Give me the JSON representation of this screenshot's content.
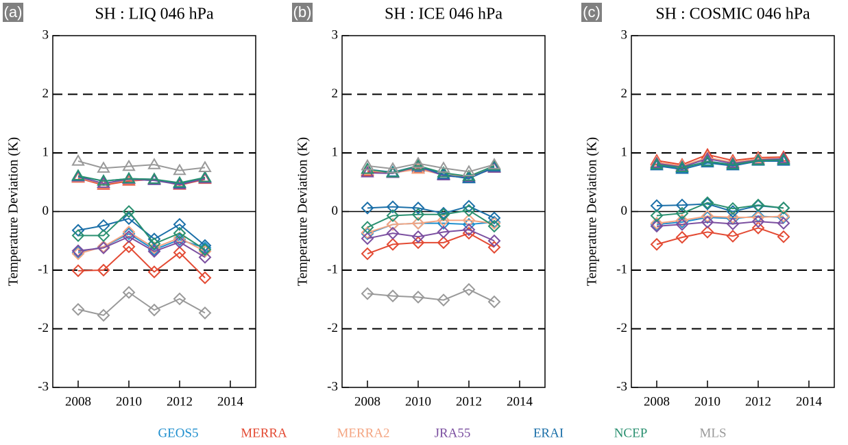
{
  "chart_data": [
    {
      "type": "line",
      "label": "(a)",
      "title": "SH : LIQ 046 hPa",
      "ylabel": "Temperature Deviation (K)",
      "x": [
        2008,
        2009,
        2010,
        2011,
        2012,
        2013
      ],
      "xlim": [
        2007,
        2015
      ],
      "xticks": [
        2008,
        2010,
        2012,
        2014
      ],
      "ylim": [
        -3,
        3
      ],
      "yticks": [
        -3,
        -2,
        -1,
        0,
        1,
        2,
        3
      ],
      "grid": true,
      "grid_style": "dashed",
      "series": [
        {
          "name": "GEOS5",
          "color": "#1f8fce",
          "marker": "triangle",
          "values": [
            0.58,
            0.48,
            0.55,
            0.53,
            0.47,
            0.57
          ]
        },
        {
          "name": "MERRA",
          "color": "#e34a33",
          "marker": "triangle",
          "values": [
            0.57,
            0.45,
            0.52,
            0.55,
            0.45,
            0.55
          ]
        },
        {
          "name": "MERRA2",
          "color": "#f4a582",
          "marker": "triangle",
          "values": [
            0.58,
            0.47,
            0.54,
            0.54,
            0.47,
            0.56
          ]
        },
        {
          "name": "JRA55",
          "color": "#7b4fa0",
          "marker": "triangle",
          "values": [
            0.59,
            0.48,
            0.55,
            0.53,
            0.46,
            0.56
          ]
        },
        {
          "name": "ERAI",
          "color": "#1a6fa8",
          "marker": "triangle",
          "values": [
            0.6,
            0.52,
            0.56,
            0.55,
            0.48,
            0.58
          ]
        },
        {
          "name": "NCEP",
          "color": "#2a9070",
          "marker": "triangle",
          "values": [
            0.61,
            0.52,
            0.56,
            0.55,
            0.49,
            0.58
          ]
        },
        {
          "name": "MLS",
          "color": "#999999",
          "marker": "triangle",
          "values": [
            0.86,
            0.74,
            0.77,
            0.8,
            0.7,
            0.75
          ]
        },
        {
          "name": "GEOS5",
          "color": "#1f8fce",
          "marker": "diamond",
          "values": [
            -0.7,
            -0.6,
            -0.38,
            -0.65,
            -0.48,
            -0.62
          ]
        },
        {
          "name": "MERRA",
          "color": "#e34a33",
          "marker": "diamond",
          "values": [
            -1.01,
            -1.0,
            -0.6,
            -1.03,
            -0.7,
            -1.13
          ]
        },
        {
          "name": "MERRA2",
          "color": "#f4a582",
          "marker": "diamond",
          "values": [
            -0.72,
            -0.6,
            -0.35,
            -0.62,
            -0.45,
            -0.68
          ]
        },
        {
          "name": "JRA55",
          "color": "#7b4fa0",
          "marker": "diamond",
          "values": [
            -0.67,
            -0.62,
            -0.43,
            -0.68,
            -0.52,
            -0.78
          ]
        },
        {
          "name": "ERAI",
          "color": "#1a6fa8",
          "marker": "diamond",
          "values": [
            -0.32,
            -0.24,
            -0.12,
            -0.47,
            -0.22,
            -0.58
          ]
        },
        {
          "name": "NCEP",
          "color": "#2a9070",
          "marker": "diamond",
          "values": [
            -0.41,
            -0.41,
            0.0,
            -0.55,
            -0.37,
            -0.65
          ]
        },
        {
          "name": "MLS",
          "color": "#999999",
          "marker": "diamond",
          "values": [
            -1.67,
            -1.77,
            -1.38,
            -1.68,
            -1.49,
            -1.73
          ]
        }
      ]
    },
    {
      "type": "line",
      "label": "(b)",
      "title": "SH : ICE 046 hPa",
      "ylabel": "Temperature Deviation (K)",
      "x": [
        2008,
        2009,
        2010,
        2011,
        2012,
        2013
      ],
      "xlim": [
        2007,
        2015
      ],
      "xticks": [
        2008,
        2010,
        2012,
        2014
      ],
      "ylim": [
        -3,
        3
      ],
      "yticks": [
        -3,
        -2,
        -1,
        0,
        1,
        2,
        3
      ],
      "grid": true,
      "grid_style": "dashed",
      "series": [
        {
          "name": "GEOS5",
          "color": "#1f8fce",
          "marker": "triangle",
          "values": [
            0.7,
            0.67,
            0.75,
            0.62,
            0.57,
            0.75
          ]
        },
        {
          "name": "MERRA",
          "color": "#e34a33",
          "marker": "triangle",
          "values": [
            0.68,
            0.66,
            0.73,
            0.63,
            0.58,
            0.74
          ]
        },
        {
          "name": "MERRA2",
          "color": "#f4a582",
          "marker": "triangle",
          "values": [
            0.7,
            0.66,
            0.72,
            0.63,
            0.6,
            0.74
          ]
        },
        {
          "name": "JRA55",
          "color": "#7b4fa0",
          "marker": "triangle",
          "values": [
            0.66,
            0.65,
            0.77,
            0.61,
            0.58,
            0.74
          ]
        },
        {
          "name": "ERAI",
          "color": "#1a6fa8",
          "marker": "triangle",
          "values": [
            0.72,
            0.67,
            0.78,
            0.63,
            0.56,
            0.76
          ]
        },
        {
          "name": "NCEP",
          "color": "#2a9070",
          "marker": "triangle",
          "values": [
            0.72,
            0.66,
            0.78,
            0.66,
            0.6,
            0.78
          ]
        },
        {
          "name": "MLS",
          "color": "#999999",
          "marker": "triangle",
          "values": [
            0.78,
            0.73,
            0.82,
            0.74,
            0.68,
            0.8
          ]
        },
        {
          "name": "GEOS5",
          "color": "#1f8fce",
          "marker": "diamond",
          "values": [
            -0.38,
            -0.22,
            -0.2,
            -0.2,
            -0.22,
            -0.18
          ]
        },
        {
          "name": "MERRA",
          "color": "#e34a33",
          "marker": "diamond",
          "values": [
            -0.72,
            -0.56,
            -0.53,
            -0.53,
            -0.37,
            -0.61
          ]
        },
        {
          "name": "MERRA2",
          "color": "#f4a582",
          "marker": "diamond",
          "values": [
            -0.36,
            -0.22,
            -0.2,
            -0.15,
            -0.15,
            -0.2
          ]
        },
        {
          "name": "JRA55",
          "color": "#7b4fa0",
          "marker": "diamond",
          "values": [
            -0.46,
            -0.37,
            -0.43,
            -0.35,
            -0.31,
            -0.5
          ]
        },
        {
          "name": "ERAI",
          "color": "#1a6fa8",
          "marker": "diamond",
          "values": [
            0.06,
            0.08,
            0.06,
            -0.03,
            0.09,
            -0.11
          ]
        },
        {
          "name": "NCEP",
          "color": "#2a9070",
          "marker": "diamond",
          "values": [
            -0.27,
            -0.07,
            -0.05,
            -0.05,
            0.02,
            -0.25
          ]
        },
        {
          "name": "MLS",
          "color": "#999999",
          "marker": "diamond",
          "values": [
            -1.4,
            -1.44,
            -1.46,
            -1.51,
            -1.33,
            -1.54
          ]
        }
      ]
    },
    {
      "type": "line",
      "label": "(c)",
      "title": "SH : COSMIC 046 hPa",
      "ylabel": "Temperature Deviation (K)",
      "x": [
        2008,
        2009,
        2010,
        2011,
        2012,
        2013
      ],
      "xlim": [
        2007,
        2015
      ],
      "xticks": [
        2008,
        2010,
        2012,
        2014
      ],
      "ylim": [
        -3,
        3
      ],
      "yticks": [
        -3,
        -2,
        -1,
        0,
        1,
        2,
        3
      ],
      "grid": true,
      "grid_style": "dashed",
      "series": [
        {
          "name": "GEOS5",
          "color": "#1f8fce",
          "marker": "triangle",
          "values": [
            0.8,
            0.74,
            0.86,
            0.8,
            0.88,
            0.88
          ]
        },
        {
          "name": "MERRA",
          "color": "#e34a33",
          "marker": "triangle",
          "values": [
            0.87,
            0.8,
            0.97,
            0.87,
            0.92,
            0.93
          ]
        },
        {
          "name": "MERRA2",
          "color": "#f4a582",
          "marker": "triangle",
          "values": [
            0.84,
            0.78,
            0.92,
            0.84,
            0.9,
            0.9
          ]
        },
        {
          "name": "JRA55",
          "color": "#7b4fa0",
          "marker": "triangle",
          "values": [
            0.82,
            0.76,
            0.9,
            0.82,
            0.88,
            0.9
          ]
        },
        {
          "name": "ERAI",
          "color": "#1a6fa8",
          "marker": "triangle",
          "values": [
            0.78,
            0.72,
            0.83,
            0.78,
            0.86,
            0.86
          ]
        },
        {
          "name": "NCEP",
          "color": "#2a9070",
          "marker": "triangle",
          "values": [
            0.8,
            0.75,
            0.85,
            0.8,
            0.87,
            0.88
          ]
        },
        {
          "name": "GEOS5",
          "color": "#1f8fce",
          "marker": "diamond",
          "values": [
            -0.22,
            -0.18,
            -0.1,
            -0.12,
            -0.08,
            -0.1
          ]
        },
        {
          "name": "MERRA",
          "color": "#e34a33",
          "marker": "diamond",
          "values": [
            -0.56,
            -0.44,
            -0.35,
            -0.42,
            -0.28,
            -0.43
          ]
        },
        {
          "name": "MERRA2",
          "color": "#f4a582",
          "marker": "diamond",
          "values": [
            -0.2,
            -0.15,
            -0.08,
            -0.1,
            -0.1,
            -0.08
          ]
        },
        {
          "name": "JRA55",
          "color": "#7b4fa0",
          "marker": "diamond",
          "values": [
            -0.25,
            -0.22,
            -0.18,
            -0.21,
            -0.17,
            -0.2
          ]
        },
        {
          "name": "ERAI",
          "color": "#1a6fa8",
          "marker": "diamond",
          "values": [
            0.1,
            0.11,
            0.13,
            0.0,
            0.1,
            0.06
          ]
        },
        {
          "name": "NCEP",
          "color": "#2a9070",
          "marker": "diamond",
          "values": [
            -0.07,
            -0.03,
            0.15,
            0.05,
            0.11,
            0.06
          ]
        }
      ]
    }
  ]
}
